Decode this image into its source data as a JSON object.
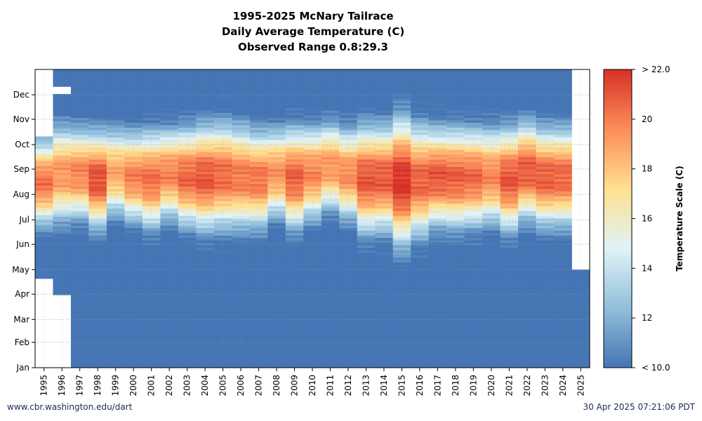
{
  "header": {
    "title": "1995-2025 McNary Tailrace",
    "subtitle": "Daily Average Temperature (C)",
    "range_label": "Observed Range 0.8:29.3"
  },
  "footer": {
    "source": "www.cbr.washington.edu/dart",
    "timestamp": "30 Apr 2025 07:21:06 PDT"
  },
  "chart_data": {
    "type": "heatmap",
    "x_categories": [
      "1995",
      "1996",
      "1997",
      "1998",
      "1999",
      "2000",
      "2001",
      "2002",
      "2003",
      "2004",
      "2005",
      "2006",
      "2007",
      "2008",
      "2009",
      "2010",
      "2011",
      "2012",
      "2013",
      "2014",
      "2015",
      "2016",
      "2017",
      "2018",
      "2019",
      "2020",
      "2021",
      "2022",
      "2023",
      "2024",
      "2025"
    ],
    "y_tick_labels": [
      "Jan",
      "Feb",
      "Mar",
      "Apr",
      "May",
      "Jun",
      "Jul",
      "Aug",
      "Sep",
      "Oct",
      "Nov",
      "Dec"
    ],
    "y_axis": "day of year",
    "colorbar": {
      "label": "Temperature Scale (C)",
      "min": 10,
      "max": 22,
      "tick_values": [
        10,
        12,
        14,
        16,
        18,
        20,
        22
      ],
      "tick_labels": [
        "< 10.0",
        "12",
        "14",
        "16",
        "18",
        "20",
        "> 22.0"
      ],
      "colormap": [
        "#4575b4",
        "#91bfdb",
        "#e0f3f8",
        "#fee090",
        "#fc8d59",
        "#d73027"
      ]
    },
    "grid": true,
    "years": [
      {
        "year": "1995",
        "peak": 20.2,
        "rise": 185,
        "fall": 270,
        "coverage": [
          [
            110,
            283
          ]
        ]
      },
      {
        "year": "1996",
        "peak": 19.3,
        "rise": 190,
        "fall": 285,
        "coverage": [
          [
            90,
            335
          ],
          [
            345,
            365
          ]
        ]
      },
      {
        "year": "1997",
        "peak": 19.8,
        "rise": 193,
        "fall": 283,
        "coverage": [
          [
            1,
            365
          ]
        ]
      },
      {
        "year": "1998",
        "peak": 21.2,
        "rise": 183,
        "fall": 279,
        "coverage": [
          [
            1,
            365
          ]
        ]
      },
      {
        "year": "1999",
        "peak": 18.8,
        "rise": 197,
        "fall": 283,
        "coverage": [
          [
            1,
            365
          ]
        ]
      },
      {
        "year": "2000",
        "peak": 19.9,
        "rise": 190,
        "fall": 279,
        "coverage": [
          [
            1,
            365
          ]
        ]
      },
      {
        "year": "2001",
        "peak": 20.3,
        "rise": 183,
        "fall": 280,
        "coverage": [
          [
            1,
            365
          ]
        ]
      },
      {
        "year": "2002",
        "peak": 19.8,
        "rise": 193,
        "fall": 283,
        "coverage": [
          [
            1,
            365
          ]
        ]
      },
      {
        "year": "2003",
        "peak": 20.6,
        "rise": 185,
        "fall": 283,
        "coverage": [
          [
            1,
            365
          ]
        ]
      },
      {
        "year": "2004",
        "peak": 21.0,
        "rise": 181,
        "fall": 286,
        "coverage": [
          [
            1,
            365
          ]
        ]
      },
      {
        "year": "2005",
        "peak": 20.5,
        "rise": 183,
        "fall": 288,
        "coverage": [
          [
            1,
            365
          ]
        ]
      },
      {
        "year": "2006",
        "peak": 20.1,
        "rise": 183,
        "fall": 285,
        "coverage": [
          [
            1,
            365
          ]
        ]
      },
      {
        "year": "2007",
        "peak": 20.2,
        "rise": 183,
        "fall": 280,
        "coverage": [
          [
            1,
            365
          ]
        ]
      },
      {
        "year": "2008",
        "peak": 19.4,
        "rise": 195,
        "fall": 283,
        "coverage": [
          [
            1,
            365
          ]
        ]
      },
      {
        "year": "2009",
        "peak": 20.7,
        "rise": 183,
        "fall": 283,
        "coverage": [
          [
            1,
            365
          ]
        ]
      },
      {
        "year": "2010",
        "peak": 19.8,
        "rise": 193,
        "fall": 285,
        "coverage": [
          [
            1,
            365
          ]
        ]
      },
      {
        "year": "2011",
        "peak": 19.3,
        "rise": 203,
        "fall": 290,
        "coverage": [
          [
            1,
            365
          ]
        ]
      },
      {
        "year": "2012",
        "peak": 19.6,
        "rise": 193,
        "fall": 283,
        "coverage": [
          [
            1,
            365
          ]
        ]
      },
      {
        "year": "2013",
        "peak": 21.0,
        "rise": 178,
        "fall": 285,
        "coverage": [
          [
            1,
            365
          ]
        ]
      },
      {
        "year": "2014",
        "peak": 20.9,
        "rise": 180,
        "fall": 285,
        "coverage": [
          [
            1,
            365
          ]
        ]
      },
      {
        "year": "2015",
        "peak": 22.0,
        "rise": 165,
        "fall": 293,
        "coverage": [
          [
            1,
            365
          ]
        ]
      },
      {
        "year": "2016",
        "peak": 20.7,
        "rise": 175,
        "fall": 285,
        "coverage": [
          [
            1,
            365
          ]
        ]
      },
      {
        "year": "2017",
        "peak": 21.0,
        "rise": 185,
        "fall": 283,
        "coverage": [
          [
            1,
            365
          ]
        ]
      },
      {
        "year": "2018",
        "peak": 20.8,
        "rise": 183,
        "fall": 283,
        "coverage": [
          [
            1,
            365
          ]
        ]
      },
      {
        "year": "2019",
        "peak": 20.5,
        "rise": 185,
        "fall": 283,
        "coverage": [
          [
            1,
            365
          ]
        ]
      },
      {
        "year": "2020",
        "peak": 19.7,
        "rise": 188,
        "fall": 283,
        "coverage": [
          [
            1,
            365
          ]
        ]
      },
      {
        "year": "2021",
        "peak": 21.0,
        "rise": 180,
        "fall": 283,
        "coverage": [
          [
            1,
            365
          ]
        ]
      },
      {
        "year": "2022",
        "peak": 20.9,
        "rise": 193,
        "fall": 290,
        "coverage": [
          [
            1,
            365
          ]
        ]
      },
      {
        "year": "2023",
        "peak": 20.8,
        "rise": 185,
        "fall": 283,
        "coverage": [
          [
            1,
            365
          ]
        ]
      },
      {
        "year": "2024",
        "peak": 20.6,
        "rise": 185,
        "fall": 283,
        "coverage": [
          [
            1,
            365
          ]
        ]
      },
      {
        "year": "2025",
        "peak": 10.0,
        "rise": 0,
        "fall": 0,
        "coverage": [
          [
            1,
            120
          ]
        ]
      }
    ]
  }
}
